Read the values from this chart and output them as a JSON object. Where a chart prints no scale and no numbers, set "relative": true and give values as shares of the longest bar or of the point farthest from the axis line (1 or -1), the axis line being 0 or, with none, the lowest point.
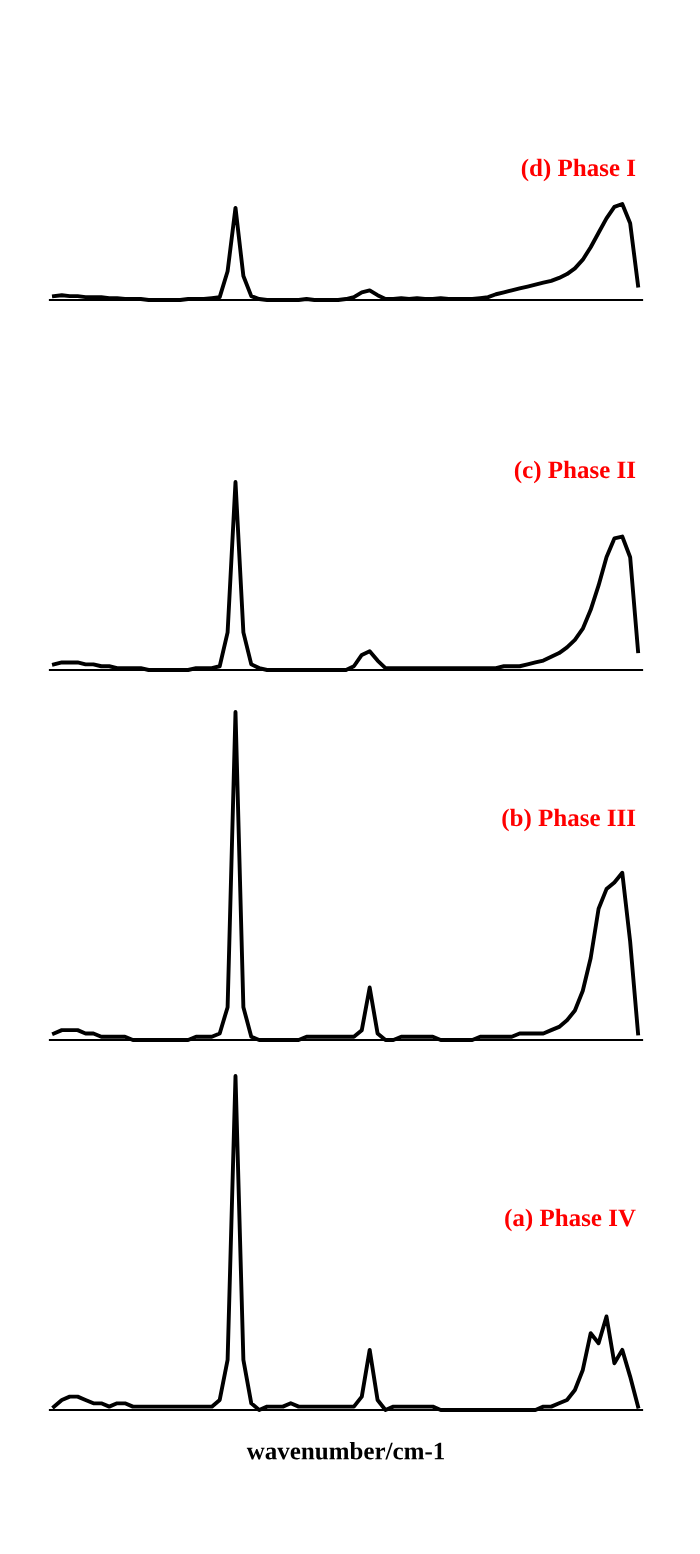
{
  "chart_data": [
    {
      "type": "line",
      "title": "(d) Phase I",
      "relative": true,
      "categories": [
        null,
        null,
        null,
        null,
        null,
        null,
        null,
        null,
        null,
        null,
        null,
        null,
        null,
        null,
        null,
        null,
        null,
        null,
        null,
        null,
        null,
        null,
        null,
        null,
        null,
        null,
        null,
        null,
        null,
        null,
        null,
        null,
        null,
        null,
        null,
        null,
        null,
        null,
        null,
        null,
        null,
        null,
        null,
        null,
        null,
        null,
        null,
        null,
        null,
        null,
        null,
        null,
        null,
        null,
        null,
        null,
        null,
        null,
        null,
        null,
        null,
        null,
        null,
        null,
        null,
        null,
        null,
        null,
        null,
        null,
        null,
        null,
        null,
        null,
        null
      ],
      "series": [
        {
          "color": "#000000",
          "values": [
            0.04,
            0.05,
            0.04,
            0.04,
            0.03,
            0.03,
            0.03,
            0.02,
            0.02,
            0.01,
            0.01,
            0.01,
            0,
            0,
            0,
            0,
            0,
            0.01,
            0.01,
            0.01,
            0.02,
            0.03,
            0.3,
            0.96,
            0.25,
            0.04,
            0.01,
            0,
            0,
            0,
            0,
            0,
            0.01,
            0,
            0,
            0,
            0,
            0.01,
            0.03,
            0.08,
            0.1,
            0.05,
            0.01,
            0.01,
            0.02,
            0.01,
            0.02,
            0.01,
            0.01,
            0.02,
            0.01,
            0.01,
            0.01,
            0.01,
            0.02,
            0.03,
            0.06,
            0.08,
            0.1,
            0.12,
            0.14,
            0.16,
            0.18,
            0.2,
            0.23,
            0.27,
            0.33,
            0.42,
            0.55,
            0.7,
            0.85,
            0.97,
            1.0,
            0.8,
            0.15
          ]
        }
      ]
    },
    {
      "type": "line",
      "title": "(c) Phase II",
      "relative": true,
      "categories": [
        null,
        null,
        null,
        null,
        null,
        null,
        null,
        null,
        null,
        null,
        null,
        null,
        null,
        null,
        null,
        null,
        null,
        null,
        null,
        null,
        null,
        null,
        null,
        null,
        null,
        null,
        null,
        null,
        null,
        null,
        null,
        null,
        null,
        null,
        null,
        null,
        null,
        null,
        null,
        null,
        null,
        null,
        null,
        null,
        null,
        null,
        null,
        null,
        null,
        null,
        null,
        null,
        null,
        null,
        null,
        null,
        null,
        null,
        null,
        null,
        null,
        null,
        null,
        null,
        null,
        null,
        null,
        null,
        null,
        null,
        null,
        null,
        null,
        null,
        null
      ],
      "series": [
        {
          "color": "#000000",
          "values": [
            0.03,
            0.04,
            0.04,
            0.04,
            0.03,
            0.03,
            0.02,
            0.02,
            0.01,
            0.01,
            0.01,
            0.01,
            0,
            0,
            0,
            0,
            0,
            0,
            0.01,
            0.01,
            0.01,
            0.02,
            0.2,
            1.0,
            0.2,
            0.03,
            0.01,
            0,
            0,
            0,
            0,
            0,
            0,
            0,
            0,
            0,
            0,
            0,
            0.02,
            0.08,
            0.1,
            0.05,
            0.01,
            0.01,
            0.01,
            0.01,
            0.01,
            0.01,
            0.01,
            0.01,
            0.01,
            0.01,
            0.01,
            0.01,
            0.01,
            0.01,
            0.01,
            0.02,
            0.02,
            0.02,
            0.03,
            0.04,
            0.05,
            0.07,
            0.09,
            0.12,
            0.16,
            0.22,
            0.32,
            0.45,
            0.6,
            0.7,
            0.71,
            0.6,
            0.1
          ]
        }
      ]
    },
    {
      "type": "line",
      "title": "(b) Phase III",
      "relative": true,
      "categories": [
        null,
        null,
        null,
        null,
        null,
        null,
        null,
        null,
        null,
        null,
        null,
        null,
        null,
        null,
        null,
        null,
        null,
        null,
        null,
        null,
        null,
        null,
        null,
        null,
        null,
        null,
        null,
        null,
        null,
        null,
        null,
        null,
        null,
        null,
        null,
        null,
        null,
        null,
        null,
        null,
        null,
        null,
        null,
        null,
        null,
        null,
        null,
        null,
        null,
        null,
        null,
        null,
        null,
        null,
        null,
        null,
        null,
        null,
        null,
        null,
        null,
        null,
        null,
        null,
        null,
        null,
        null,
        null,
        null,
        null,
        null,
        null,
        null,
        null,
        null
      ],
      "series": [
        {
          "color": "#000000",
          "values": [
            0.02,
            0.03,
            0.03,
            0.03,
            0.02,
            0.02,
            0.01,
            0.01,
            0.01,
            0.01,
            0,
            0,
            0,
            0,
            0,
            0,
            0,
            0,
            0.01,
            0.01,
            0.01,
            0.02,
            0.1,
            1.0,
            0.1,
            0.01,
            0,
            0,
            0,
            0,
            0,
            0,
            0.01,
            0.01,
            0.01,
            0.01,
            0.01,
            0.01,
            0.01,
            0.03,
            0.16,
            0.02,
            0,
            0,
            0.01,
            0.01,
            0.01,
            0.01,
            0.01,
            0,
            0,
            0,
            0,
            0,
            0.01,
            0.01,
            0.01,
            0.01,
            0.01,
            0.02,
            0.02,
            0.02,
            0.02,
            0.03,
            0.04,
            0.06,
            0.09,
            0.15,
            0.25,
            0.4,
            0.46,
            0.48,
            0.51,
            0.3,
            0.02
          ]
        }
      ]
    },
    {
      "type": "line",
      "title": "(a) Phase IV",
      "xlabel": "wavenumber/cm-1",
      "relative": true,
      "categories": [
        null,
        null,
        null,
        null,
        null,
        null,
        null,
        null,
        null,
        null,
        null,
        null,
        null,
        null,
        null,
        null,
        null,
        null,
        null,
        null,
        null,
        null,
        null,
        null,
        null,
        null,
        null,
        null,
        null,
        null,
        null,
        null,
        null,
        null,
        null,
        null,
        null,
        null,
        null,
        null,
        null,
        null,
        null,
        null,
        null,
        null,
        null,
        null,
        null,
        null,
        null,
        null,
        null,
        null,
        null,
        null,
        null,
        null,
        null,
        null,
        null,
        null,
        null,
        null,
        null,
        null,
        null,
        null,
        null,
        null,
        null,
        null,
        null,
        null,
        null
      ],
      "series": [
        {
          "color": "#000000",
          "values": [
            0.01,
            0.03,
            0.04,
            0.04,
            0.03,
            0.02,
            0.02,
            0.01,
            0.02,
            0.02,
            0.01,
            0.01,
            0.01,
            0.01,
            0.01,
            0.01,
            0.01,
            0.01,
            0.01,
            0.01,
            0.01,
            0.03,
            0.15,
            1.0,
            0.15,
            0.02,
            0,
            0.01,
            0.01,
            0.01,
            0.02,
            0.01,
            0.01,
            0.01,
            0.01,
            0.01,
            0.01,
            0.01,
            0.01,
            0.04,
            0.18,
            0.03,
            0,
            0.01,
            0.01,
            0.01,
            0.01,
            0.01,
            0.01,
            0,
            0,
            0,
            0,
            0,
            0,
            0,
            0,
            0,
            0,
            0,
            0,
            0,
            0.01,
            0.01,
            0.02,
            0.03,
            0.06,
            0.12,
            0.23,
            0.2,
            0.28,
            0.14,
            0.18,
            0.1,
            0.01
          ]
        }
      ]
    }
  ]
}
